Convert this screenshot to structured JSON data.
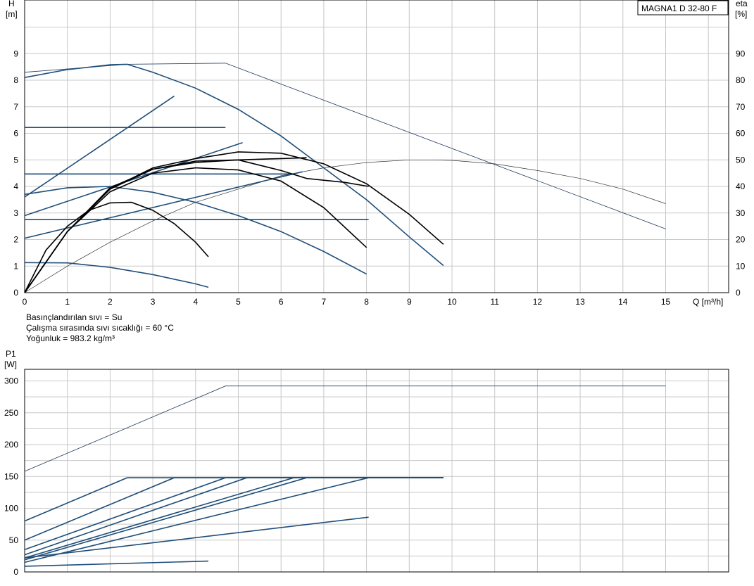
{
  "product": "MAGNA1 D 32-80 F",
  "info_lines": [
    "Basınçlandırılan sıvı = Su",
    "Çalışma sırasında sıvı sıcaklığı = 60 °C",
    "Yoğunluk = 983.2 kg/m³"
  ],
  "colors": {
    "navy": "#1f4e79",
    "black": "#000000",
    "grid": "#c8c8c8"
  },
  "chart_data": [
    {
      "type": "line",
      "name": "head-efficiency",
      "y_label": "H",
      "y_unit": "[m]",
      "y2_label": "eta",
      "y2_unit": "[%]",
      "x_label": "Q [m³/h]",
      "xlim": [
        0,
        16.5
      ],
      "ylim": [
        0,
        10
      ],
      "y2lim": [
        0,
        100
      ],
      "x_ticks": [
        "0",
        "1",
        "2",
        "3",
        "4",
        "5",
        "6",
        "7",
        "8",
        "9",
        "10",
        "11",
        "12",
        "13",
        "14",
        "15"
      ],
      "y_ticks": [
        "0",
        "1",
        "2",
        "3",
        "4",
        "5",
        "6",
        "7",
        "8",
        "9"
      ],
      "y2_ticks": [
        "0",
        "10",
        "20",
        "30",
        "40",
        "50",
        "60",
        "70",
        "80",
        "90"
      ],
      "grid": true,
      "pump_curves": [
        {
          "x": [
            0,
            1,
            2,
            2.4,
            3,
            4,
            5,
            6,
            7,
            8,
            9,
            9.8
          ],
          "y": [
            8.1,
            8.4,
            8.58,
            8.6,
            8.3,
            7.7,
            6.9,
            5.9,
            4.7,
            3.5,
            2.1,
            1.02
          ]
        },
        {
          "x": [
            0,
            1,
            2,
            3,
            4,
            5,
            6,
            7,
            8
          ],
          "y": [
            3.7,
            3.95,
            4.0,
            3.78,
            3.4,
            2.9,
            2.3,
            1.55,
            0.7
          ]
        },
        {
          "x": [
            0,
            1,
            2,
            3,
            4,
            4.3
          ],
          "y": [
            1.13,
            1.12,
            0.95,
            0.68,
            0.33,
            0.2
          ]
        }
      ],
      "proportional_pressure_lines": [
        {
          "x": [
            0,
            3.5
          ],
          "y": [
            3.6,
            7.4
          ]
        },
        {
          "x": [
            0,
            5.1
          ],
          "y": [
            2.9,
            5.65
          ]
        },
        {
          "x": [
            0,
            6.5
          ],
          "y": [
            2.05,
            4.55
          ]
        }
      ],
      "constant_pressure_lines": [
        {
          "x": [
            0,
            4.7
          ],
          "y": [
            6.22,
            6.22
          ]
        },
        {
          "x": [
            0,
            6.3
          ],
          "y": [
            4.47,
            4.47
          ]
        },
        {
          "x": [
            0,
            8.05
          ],
          "y": [
            2.75,
            2.75
          ]
        }
      ],
      "system_curves": [
        {
          "x": [
            0,
            0.5,
            1,
            1.5,
            2,
            2.5,
            3,
            3.5,
            4,
            4.3
          ],
          "y": [
            0,
            1.6,
            2.5,
            3.1,
            3.38,
            3.4,
            3.1,
            2.6,
            1.9,
            1.35
          ]
        },
        {
          "x": [
            0,
            1,
            2,
            3,
            4,
            5,
            6,
            7,
            8
          ],
          "y": [
            0,
            2.3,
            3.8,
            4.5,
            4.7,
            4.62,
            4.2,
            3.2,
            1.7
          ]
        },
        {
          "x": [
            0,
            1,
            2,
            3,
            4,
            5,
            6,
            6.6,
            7.5,
            8.05
          ],
          "y": [
            0,
            2.3,
            3.9,
            4.65,
            4.95,
            5.0,
            4.6,
            4.3,
            4.15,
            4.0
          ]
        },
        {
          "x": [
            0,
            1,
            2,
            3,
            4,
            5,
            6,
            7,
            8,
            9,
            9.8
          ],
          "y": [
            0,
            2.3,
            3.9,
            4.7,
            5.05,
            5.3,
            5.25,
            4.85,
            4.1,
            2.95,
            1.82
          ]
        },
        {
          "x": [
            0,
            1,
            2,
            3,
            4,
            5,
            6,
            6.6
          ],
          "y": [
            0,
            2.3,
            3.95,
            4.65,
            4.9,
            5.0,
            5.05,
            5.08
          ]
        }
      ],
      "efficiency_curves": [
        {
          "x": [
            0,
            1,
            2,
            3,
            4,
            5,
            6,
            7,
            8,
            9,
            9.5,
            10,
            11,
            12,
            13,
            14,
            15
          ],
          "y": [
            0,
            10,
            19,
            27,
            34,
            39,
            44,
            47,
            49,
            50,
            50,
            49.8,
            48.5,
            46,
            43,
            39,
            33.5
          ]
        },
        {
          "x": [
            0,
            2.4,
            4.7,
            15
          ],
          "y": [
            83,
            86,
            86.4,
            24
          ]
        }
      ]
    },
    {
      "type": "line",
      "name": "power",
      "y_label": "P1",
      "y_unit": "[W]",
      "xlim": [
        0,
        16.5
      ],
      "ylim": [
        0,
        320
      ],
      "y_ticks": [
        "0",
        "50",
        "100",
        "150",
        "200",
        "250",
        "300"
      ],
      "grid": true,
      "power_curves": [
        {
          "x": [
            0,
            4.7,
            15
          ],
          "y": [
            158,
            292,
            292
          ]
        },
        {
          "x": [
            0,
            2.4,
            9.8
          ],
          "y": [
            80,
            148,
            148
          ]
        },
        {
          "x": [
            0,
            3.5,
            9.8
          ],
          "y": [
            50,
            148,
            148
          ]
        },
        {
          "x": [
            0,
            4.7,
            9.8
          ],
          "y": [
            35,
            148,
            148
          ]
        },
        {
          "x": [
            0,
            5.2,
            9.8
          ],
          "y": [
            27,
            148,
            148
          ]
        },
        {
          "x": [
            0,
            6.3,
            9.8
          ],
          "y": [
            22,
            148,
            148
          ]
        },
        {
          "x": [
            0,
            6.6,
            9.8
          ],
          "y": [
            19,
            148,
            148
          ]
        },
        {
          "x": [
            0,
            8.05,
            9.8
          ],
          "y": [
            15,
            148,
            148
          ]
        },
        {
          "x": [
            0,
            8.05
          ],
          "y": [
            22,
            86
          ]
        },
        {
          "x": [
            0,
            4.3
          ],
          "y": [
            9,
            17
          ]
        }
      ]
    }
  ]
}
